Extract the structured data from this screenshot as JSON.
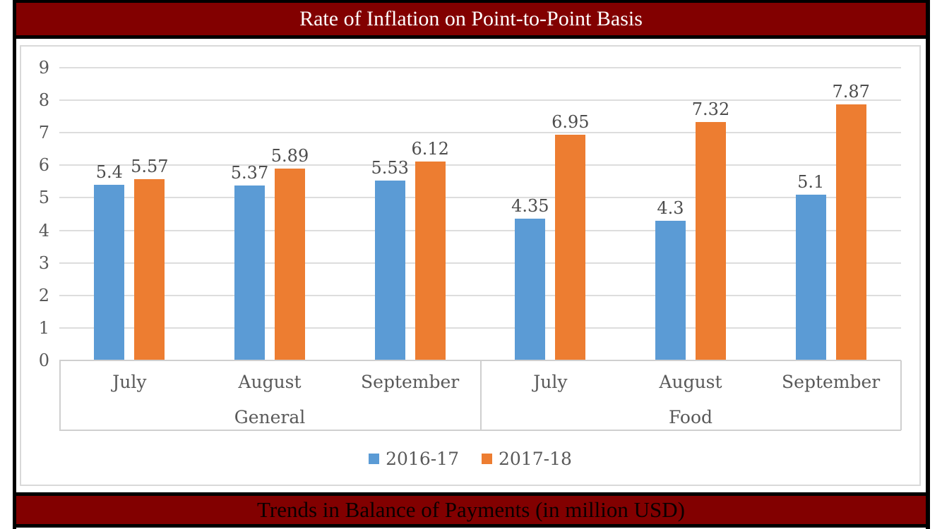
{
  "page": {
    "title_top": "Rate of Inflation on Point-to-Point Basis",
    "title_bottom": "Trends in Balance of Payments (in million USD)"
  },
  "colors": {
    "header_maroon": "#820000",
    "frame_black": "#000000",
    "chart_text_gray": "#595959",
    "gridline_gray": "#dddddd",
    "series_blue": "#5B9BD5",
    "series_orange": "#ED7D31"
  },
  "chart_data": {
    "type": "bar",
    "title": "Rate of Inflation on Point-to-Point Basis",
    "group_labels": [
      "General",
      "Food"
    ],
    "categories": [
      "July",
      "August",
      "September",
      "July",
      "August",
      "September"
    ],
    "series": [
      {
        "name": "2016-17",
        "color": "#5B9BD5",
        "values": [
          5.4,
          5.37,
          5.53,
          4.35,
          4.3,
          5.1
        ],
        "labels": [
          "5.4",
          "5.37",
          "5.53",
          "4.35",
          "4.3",
          "5.1"
        ]
      },
      {
        "name": "2017-18",
        "color": "#ED7D31",
        "values": [
          5.57,
          5.89,
          6.12,
          6.95,
          7.32,
          7.87
        ],
        "labels": [
          "5.57",
          "5.89",
          "6.12",
          "6.95",
          "7.32",
          "7.87"
        ]
      }
    ],
    "ylim": [
      0,
      9
    ],
    "ytick_step": 1,
    "yticks": [
      "0",
      "1",
      "2",
      "3",
      "4",
      "5",
      "6",
      "7",
      "8",
      "9"
    ],
    "grid": true,
    "data_labels": true,
    "legend_position": "bottom"
  }
}
